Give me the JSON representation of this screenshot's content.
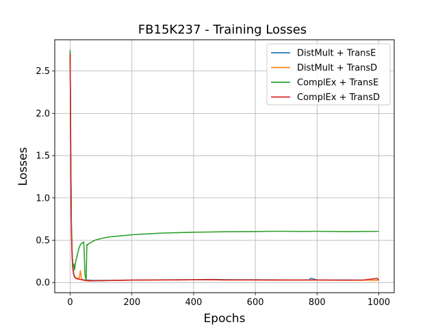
{
  "chart_data": {
    "type": "line",
    "title": "FB15K237 - Training Losses",
    "xlabel": "Epochs",
    "ylabel": "Losses",
    "xlim": [
      -50,
      1050
    ],
    "ylim": [
      -0.12,
      2.87
    ],
    "xticks": [
      0,
      200,
      400,
      600,
      800,
      1000
    ],
    "yticks": [
      0.0,
      0.5,
      1.0,
      1.5,
      2.0,
      2.5
    ],
    "xtick_labels": [
      "0",
      "200",
      "400",
      "600",
      "800",
      "1000"
    ],
    "ytick_labels": [
      "0.0",
      "0.5",
      "1.0",
      "1.5",
      "2.0",
      "2.5"
    ],
    "grid": true,
    "legend_position": "top-right",
    "series": [
      {
        "name": "DistMult + TransE",
        "color": "#1f77b4",
        "x": [
          0,
          2,
          4,
          6,
          8,
          10,
          12,
          15,
          18,
          22,
          26,
          30,
          35,
          40,
          45,
          50,
          55,
          60,
          70,
          80,
          100,
          120,
          150,
          200,
          250,
          300,
          350,
          400,
          450,
          500,
          550,
          600,
          650,
          700,
          750,
          775,
          780,
          800,
          850,
          900,
          950,
          1000
        ],
        "y": [
          2.72,
          1.5,
          0.7,
          0.38,
          0.22,
          0.14,
          0.1,
          0.07,
          0.055,
          0.045,
          0.04,
          0.04,
          0.035,
          0.035,
          0.03,
          0.03,
          0.028,
          0.028,
          0.027,
          0.026,
          0.025,
          0.026,
          0.027,
          0.03,
          0.031,
          0.032,
          0.033,
          0.034,
          0.036,
          0.035,
          0.034,
          0.033,
          0.032,
          0.031,
          0.03,
          0.032,
          0.05,
          0.031,
          0.03,
          0.029,
          0.028,
          0.03
        ]
      },
      {
        "name": "DistMult + TransD",
        "color": "#ff7f0e",
        "x": [
          0,
          2,
          4,
          6,
          8,
          10,
          12,
          15,
          18,
          22,
          26,
          30,
          33,
          36,
          38,
          40,
          45,
          50,
          60,
          80,
          100,
          150,
          200,
          300,
          400,
          500,
          600,
          700,
          800,
          900,
          1000
        ],
        "y": [
          2.72,
          1.4,
          0.6,
          0.3,
          0.18,
          0.12,
          0.09,
          0.07,
          0.06,
          0.05,
          0.05,
          0.06,
          0.14,
          0.06,
          0.04,
          0.03,
          0.025,
          0.02,
          0.02,
          0.022,
          0.022,
          0.025,
          0.028,
          0.03,
          0.032,
          0.031,
          0.03,
          0.029,
          0.028,
          0.027,
          0.028
        ]
      },
      {
        "name": "ComplEx + TransE",
        "color": "#2ca02c",
        "x": [
          0,
          2,
          4,
          6,
          8,
          10,
          12,
          14,
          16,
          18,
          20,
          24,
          28,
          32,
          36,
          40,
          44,
          48,
          50,
          52,
          54,
          56,
          60,
          70,
          80,
          100,
          130,
          160,
          200,
          250,
          300,
          350,
          400,
          450,
          500,
          550,
          600,
          650,
          700,
          750,
          800,
          850,
          900,
          950,
          1000
        ],
        "y": [
          2.75,
          1.5,
          0.7,
          0.35,
          0.22,
          0.18,
          0.22,
          0.15,
          0.2,
          0.25,
          0.28,
          0.34,
          0.4,
          0.44,
          0.46,
          0.47,
          0.48,
          0.1,
          0.05,
          0.04,
          0.45,
          0.44,
          0.46,
          0.48,
          0.5,
          0.52,
          0.54,
          0.55,
          0.565,
          0.575,
          0.585,
          0.59,
          0.595,
          0.597,
          0.6,
          0.602,
          0.603,
          0.605,
          0.605,
          0.604,
          0.605,
          0.604,
          0.603,
          0.604,
          0.605
        ]
      },
      {
        "name": "ComplEx + TransD",
        "color": "#d62728",
        "x": [
          0,
          2,
          4,
          6,
          8,
          10,
          12,
          15,
          18,
          22,
          26,
          30,
          35,
          40,
          45,
          50,
          55,
          60,
          65,
          70,
          80,
          90,
          100,
          150,
          200,
          300,
          400,
          460,
          500,
          600,
          700,
          800,
          900,
          950,
          995,
          1000
        ],
        "y": [
          2.7,
          1.45,
          0.65,
          0.32,
          0.18,
          0.12,
          0.08,
          0.06,
          0.05,
          0.045,
          0.04,
          0.04,
          0.035,
          0.03,
          0.03,
          0.025,
          0.025,
          0.022,
          0.018,
          0.02,
          0.02,
          0.022,
          0.022,
          0.025,
          0.028,
          0.03,
          0.032,
          0.035,
          0.031,
          0.03,
          0.029,
          0.03,
          0.028,
          0.03,
          0.05,
          0.025
        ]
      }
    ]
  }
}
